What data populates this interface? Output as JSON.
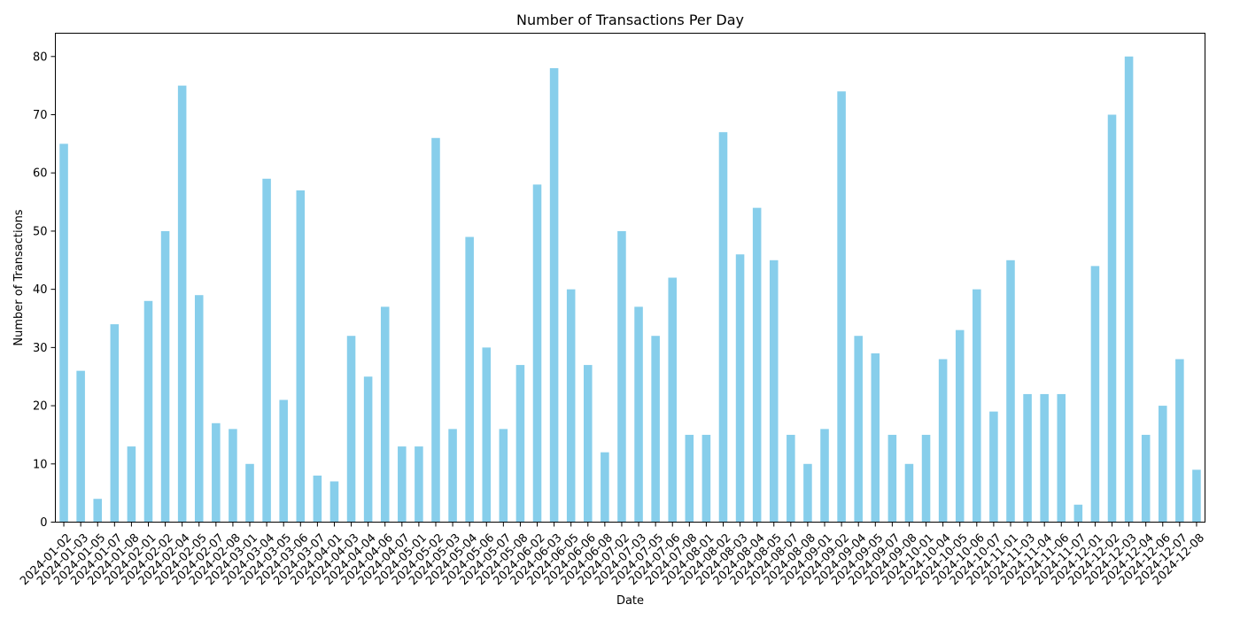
{
  "chart_data": {
    "type": "bar",
    "title": "Number of Transactions Per Day",
    "xlabel": "Date",
    "ylabel": "Number of Transactions",
    "ylim": [
      0,
      84
    ],
    "yticks": [
      0,
      10,
      20,
      30,
      40,
      50,
      60,
      70,
      80
    ],
    "grid": false,
    "legend": "none",
    "bar_color": "#87ceeb",
    "categories": [
      "2024-01-02",
      "2024-01-03",
      "2024-01-05",
      "2024-01-07",
      "2024-01-08",
      "2024-02-01",
      "2024-02-02",
      "2024-02-04",
      "2024-02-05",
      "2024-02-07",
      "2024-02-08",
      "2024-03-01",
      "2024-03-04",
      "2024-03-05",
      "2024-03-06",
      "2024-03-07",
      "2024-04-01",
      "2024-04-03",
      "2024-04-04",
      "2024-04-06",
      "2024-04-07",
      "2024-05-01",
      "2024-05-02",
      "2024-05-03",
      "2024-05-04",
      "2024-05-06",
      "2024-05-07",
      "2024-05-08",
      "2024-06-02",
      "2024-06-03",
      "2024-06-05",
      "2024-06-06",
      "2024-06-08",
      "2024-07-02",
      "2024-07-03",
      "2024-07-05",
      "2024-07-06",
      "2024-07-08",
      "2024-08-01",
      "2024-08-02",
      "2024-08-03",
      "2024-08-04",
      "2024-08-05",
      "2024-08-07",
      "2024-08-08",
      "2024-09-01",
      "2024-09-02",
      "2024-09-04",
      "2024-09-05",
      "2024-09-07",
      "2024-09-08",
      "2024-10-01",
      "2024-10-04",
      "2024-10-05",
      "2024-10-06",
      "2024-10-07",
      "2024-11-01",
      "2024-11-03",
      "2024-11-04",
      "2024-11-06",
      "2024-11-07",
      "2024-12-01",
      "2024-12-02",
      "2024-12-03",
      "2024-12-04",
      "2024-12-06",
      "2024-12-07",
      "2024-12-08"
    ],
    "values": [
      65,
      26,
      4,
      34,
      13,
      38,
      50,
      75,
      39,
      17,
      16,
      10,
      59,
      21,
      57,
      8,
      7,
      32,
      25,
      37,
      13,
      13,
      66,
      16,
      49,
      30,
      16,
      27,
      58,
      78,
      40,
      27,
      12,
      50,
      37,
      32,
      42,
      15,
      15,
      67,
      46,
      54,
      45,
      15,
      10,
      16,
      74,
      32,
      29,
      15,
      10,
      15,
      28,
      33,
      40,
      19,
      45,
      22,
      22,
      22,
      3,
      44,
      70,
      80,
      15,
      20,
      28,
      9
    ]
  }
}
